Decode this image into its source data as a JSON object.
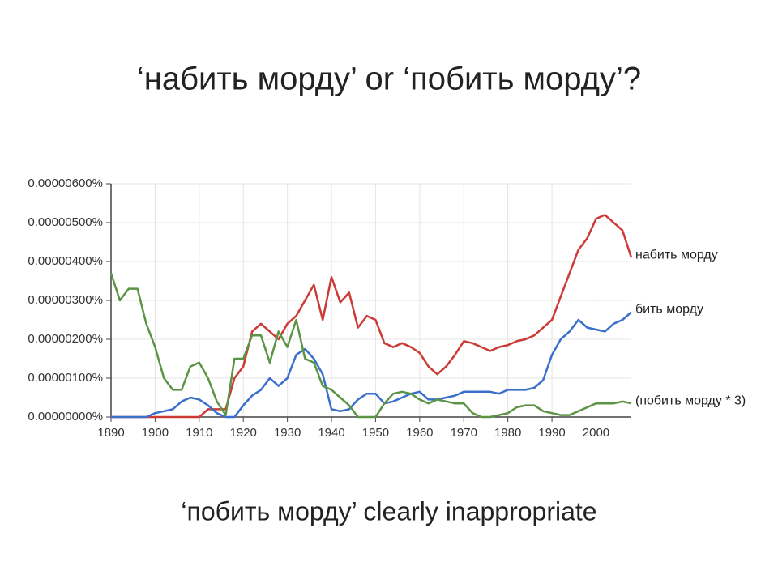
{
  "slide": {
    "title": "‘набить морду’ or ‘побить морду’?",
    "caption": "‘побить морду’ clearly inappropriate"
  },
  "chart_data": {
    "type": "line",
    "x": [
      1890,
      1892,
      1894,
      1896,
      1898,
      1900,
      1902,
      1904,
      1906,
      1908,
      1910,
      1912,
      1914,
      1916,
      1918,
      1920,
      1922,
      1924,
      1926,
      1928,
      1930,
      1932,
      1934,
      1936,
      1938,
      1940,
      1942,
      1944,
      1946,
      1948,
      1950,
      1952,
      1954,
      1956,
      1958,
      1960,
      1962,
      1964,
      1966,
      1968,
      1970,
      1972,
      1974,
      1976,
      1978,
      1980,
      1982,
      1984,
      1986,
      1988,
      1990,
      1992,
      1994,
      1996,
      1998,
      2000,
      2002,
      2004,
      2006,
      2008
    ],
    "series": [
      {
        "name": "набить морду",
        "color": "#cc3a35",
        "values": [
          0,
          0,
          0,
          0,
          0,
          0,
          0,
          0,
          0,
          0,
          0,
          2e-07,
          2e-07,
          2e-07,
          1e-06,
          1.3e-06,
          2.2e-06,
          2.4e-06,
          2.2e-06,
          2e-06,
          2.4e-06,
          2.6e-06,
          3e-06,
          3.4e-06,
          2.5e-06,
          3.6e-06,
          2.95e-06,
          3.2e-06,
          2.3e-06,
          2.6e-06,
          2.5e-06,
          1.9e-06,
          1.8e-06,
          1.9e-06,
          1.8e-06,
          1.65e-06,
          1.3e-06,
          1.1e-06,
          1.3e-06,
          1.6e-06,
          1.95e-06,
          1.9e-06,
          1.8e-06,
          1.7e-06,
          1.8e-06,
          1.85e-06,
          1.95e-06,
          2e-06,
          2.1e-06,
          2.3e-06,
          2.5e-06,
          3.1e-06,
          3.7e-06,
          4.3e-06,
          4.6e-06,
          5.1e-06,
          5.2e-06,
          5e-06,
          4.8e-06,
          4.1e-06
        ]
      },
      {
        "name": "бить морду",
        "color": "#3a6fcc",
        "values": [
          0,
          0,
          0,
          0,
          0,
          1e-07,
          1.5e-07,
          2e-07,
          4e-07,
          5e-07,
          4.5e-07,
          3e-07,
          1e-07,
          0,
          0,
          3e-07,
          5.5e-07,
          7e-07,
          1e-06,
          8e-07,
          1e-06,
          1.6e-06,
          1.75e-06,
          1.5e-06,
          1.1e-06,
          2e-07,
          1.5e-07,
          2e-07,
          4.5e-07,
          6e-07,
          6e-07,
          3.5e-07,
          4e-07,
          5e-07,
          6e-07,
          6.5e-07,
          4.5e-07,
          4.5e-07,
          5e-07,
          5.5e-07,
          6.5e-07,
          6.5e-07,
          6.5e-07,
          6.5e-07,
          6e-07,
          7e-07,
          7e-07,
          7e-07,
          7.5e-07,
          9.5e-07,
          1.6e-06,
          2e-06,
          2.2e-06,
          2.5e-06,
          2.3e-06,
          2.25e-06,
          2.2e-06,
          2.4e-06,
          2.5e-06,
          2.7e-06
        ]
      },
      {
        "name": "(побить морду * 3)",
        "color": "#5c9445",
        "values": [
          3.7e-06,
          3e-06,
          3.3e-06,
          3.3e-06,
          2.4e-06,
          1.8e-06,
          1e-06,
          7e-07,
          7e-07,
          1.3e-06,
          1.4e-06,
          1e-06,
          4e-07,
          5e-08,
          1.5e-06,
          1.5e-06,
          2.1e-06,
          2.1e-06,
          1.4e-06,
          2.2e-06,
          1.8e-06,
          2.5e-06,
          1.5e-06,
          1.4e-06,
          8e-07,
          7e-07,
          5e-07,
          3e-07,
          0,
          0,
          0,
          3.5e-07,
          6e-07,
          6.5e-07,
          6e-07,
          4.5e-07,
          3.5e-07,
          4.5e-07,
          4e-07,
          3.5e-07,
          3.5e-07,
          1e-07,
          0,
          0,
          5e-08,
          1e-07,
          2.5e-07,
          3e-07,
          3e-07,
          1.5e-07,
          1e-07,
          5e-08,
          5e-08,
          1.5e-07,
          2.5e-07,
          3.5e-07,
          3.5e-07,
          3.5e-07,
          4e-07,
          3.5e-07
        ]
      }
    ],
    "xlim": [
      1890,
      2008
    ],
    "xticks": [
      1890,
      1900,
      1910,
      1920,
      1930,
      1940,
      1950,
      1960,
      1970,
      1980,
      1990,
      2000
    ],
    "ylim": [
      0,
      6e-06
    ],
    "yticks": [
      {
        "value": 0,
        "label": "0.00000000%"
      },
      {
        "value": 1e-06,
        "label": "0.00000100%"
      },
      {
        "value": 2e-06,
        "label": "0.00000200%"
      },
      {
        "value": 3e-06,
        "label": "0.00000300%"
      },
      {
        "value": 4e-06,
        "label": "0.00000400%"
      },
      {
        "value": 5e-06,
        "label": "0.00000500%"
      },
      {
        "value": 6e-06,
        "label": "0.00000600%"
      }
    ],
    "grid": true
  }
}
